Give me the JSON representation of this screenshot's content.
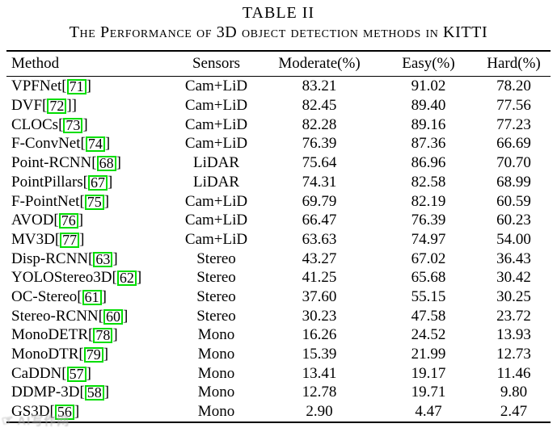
{
  "caption": {
    "title": "TABLE II",
    "subtitle": "The Performance of 3D object detection methods in KITTI"
  },
  "table": {
    "headers": [
      "Method",
      "Sensors",
      "Moderate(%)",
      "Easy(%)",
      "Hard(%)"
    ],
    "rows": [
      {
        "prefix": "VPFNet[",
        "cite": "71",
        "suffix": "]",
        "sensors": "Cam+LiD",
        "moderate": "83.21",
        "easy": "91.02",
        "hard": "78.20"
      },
      {
        "prefix": "DVF[",
        "cite": "72",
        "suffix": "]]",
        "sensors": "Cam+LiD",
        "moderate": "82.45",
        "easy": "89.40",
        "hard": "77.56"
      },
      {
        "prefix": "CLOCs[",
        "cite": "73",
        "suffix": "]",
        "sensors": "Cam+LiD",
        "moderate": "82.28",
        "easy": "89.16",
        "hard": "77.23"
      },
      {
        "prefix": "F-ConvNet[",
        "cite": "74",
        "suffix": "]",
        "sensors": "Cam+LiD",
        "moderate": "76.39",
        "easy": "87.36",
        "hard": "66.69"
      },
      {
        "prefix": "Point-RCNN[",
        "cite": "68",
        "suffix": "]",
        "sensors": "LiDAR",
        "moderate": "75.64",
        "easy": "86.96",
        "hard": "70.70"
      },
      {
        "prefix": "PointPillars[",
        "cite": "67",
        "suffix": "]",
        "sensors": "LiDAR",
        "moderate": "74.31",
        "easy": "82.58",
        "hard": "68.99"
      },
      {
        "prefix": "F-PointNet[",
        "cite": "75",
        "suffix": "]",
        "sensors": "Cam+LiD",
        "moderate": "69.79",
        "easy": "82.19",
        "hard": "60.59"
      },
      {
        "prefix": "AVOD[",
        "cite": "76",
        "suffix": "]",
        "sensors": "Cam+LiD",
        "moderate": "66.47",
        "easy": "76.39",
        "hard": "60.23"
      },
      {
        "prefix": "MV3D[",
        "cite": "77",
        "suffix": "]",
        "sensors": "Cam+LiD",
        "moderate": "63.63",
        "easy": "74.97",
        "hard": "54.00"
      },
      {
        "prefix": "Disp-RCNN[",
        "cite": "63",
        "suffix": "]",
        "sensors": "Stereo",
        "moderate": "43.27",
        "easy": "67.02",
        "hard": "36.43"
      },
      {
        "prefix": "YOLOStereo3D[",
        "cite": "62",
        "suffix": "]",
        "sensors": "Stereo",
        "moderate": "41.25",
        "easy": "65.68",
        "hard": "30.42"
      },
      {
        "prefix": "OC-Stereo[",
        "cite": "61",
        "suffix": "]",
        "sensors": "Stereo",
        "moderate": "37.60",
        "easy": "55.15",
        "hard": "30.25"
      },
      {
        "prefix": "Stereo-RCNN[",
        "cite": "60",
        "suffix": "]",
        "sensors": "Stereo",
        "moderate": "30.23",
        "easy": "47.58",
        "hard": "23.72"
      },
      {
        "prefix": "MonoDETR[",
        "cite": "78",
        "suffix": "]",
        "sensors": "Mono",
        "moderate": "16.26",
        "easy": "24.52",
        "hard": "13.93"
      },
      {
        "prefix": "MonoDTR[",
        "cite": "79",
        "suffix": "]",
        "sensors": "Mono",
        "moderate": "15.39",
        "easy": "21.99",
        "hard": "12.73"
      },
      {
        "prefix": "CaDDN[",
        "cite": "57",
        "suffix": "]",
        "sensors": "Mono",
        "moderate": "13.41",
        "easy": "19.17",
        "hard": "11.46"
      },
      {
        "prefix": "DDMP-3D[",
        "cite": "58",
        "suffix": "]",
        "sensors": "Mono",
        "moderate": "12.78",
        "easy": "19.71",
        "hard": "9.80"
      },
      {
        "prefix": "GS3D[",
        "cite": "56",
        "suffix": "]",
        "sensors": "Mono",
        "moderate": "2.90",
        "easy": "4.47",
        "hard": "2.47"
      }
    ]
  },
  "colors": {
    "citation_box_green": "#00dd00",
    "rule_black": "#000000",
    "background": "#ffffff",
    "watermark_gray": "#b0b0b0"
  },
  "watermark": {
    "icon": "hand-logo",
    "text": "AI写作网"
  }
}
